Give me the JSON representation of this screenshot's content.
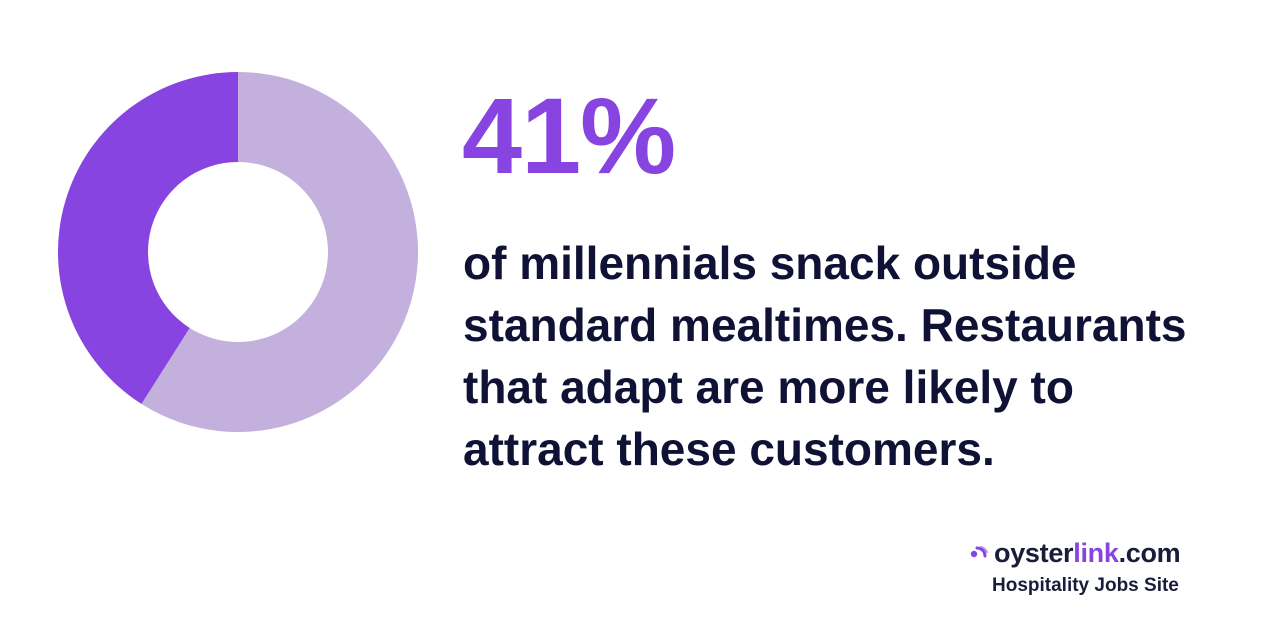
{
  "chart_data": {
    "type": "pie",
    "categories": [
      "",
      ""
    ],
    "values": [
      41,
      59
    ],
    "colors": [
      "#8844e0",
      "#c3b0dc"
    ],
    "title": ""
  },
  "stat": {
    "value": "41%",
    "color": "#8844e0"
  },
  "headline": {
    "lines": [
      "of millennials snack outside",
      "standard mealtimes. Restaurants",
      "that adapt are more likely to",
      "attract these customers."
    ],
    "color": "#0f1235"
  },
  "brand": {
    "name_part1": "oyster",
    "name_part2": "link",
    "name_part3": ".com",
    "tagline": "Hospitality Jobs Site",
    "dark_color": "#1a1d3a",
    "accent_color": "#8844e0",
    "icon": "oyster-logo-icon"
  }
}
